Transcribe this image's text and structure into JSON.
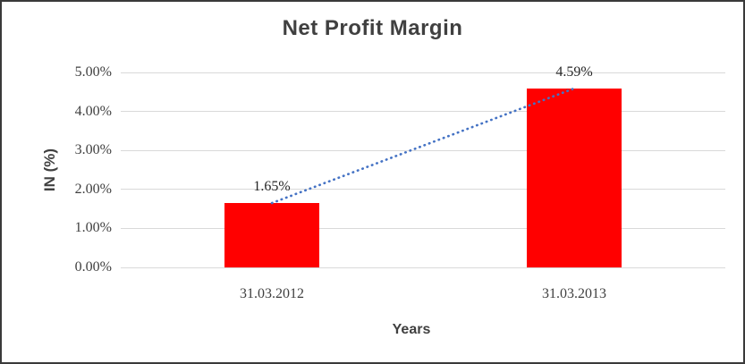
{
  "window": {
    "background_color": "#ffffff",
    "border_color": "#3a3a3a"
  },
  "chart_data": {
    "type": "bar",
    "title": "Net Profit Margin",
    "categories": [
      "31.03.2012",
      "31.03.2013"
    ],
    "values": [
      1.65,
      4.59
    ],
    "value_labels": [
      "1.65%",
      "4.59%"
    ],
    "xlabel": "Years",
    "ylabel": "IN (%)",
    "ylim": [
      0,
      5
    ],
    "y_ticks": [
      {
        "value": 0,
        "label": "0.00%"
      },
      {
        "value": 1,
        "label": "1.00%"
      },
      {
        "value": 2,
        "label": "2.00%"
      },
      {
        "value": 3,
        "label": "3.00%"
      },
      {
        "value": 4,
        "label": "4.00%"
      },
      {
        "value": 5,
        "label": "5.00%"
      }
    ],
    "grid": true,
    "legend_visible": false,
    "bar_color": "#ff0000",
    "gridline_color": "#d9d9d9",
    "text_color": "#404040",
    "trendline": {
      "style": "dotted",
      "color": "#4472c4",
      "from_value": 1.65,
      "to_value": 4.59
    }
  }
}
